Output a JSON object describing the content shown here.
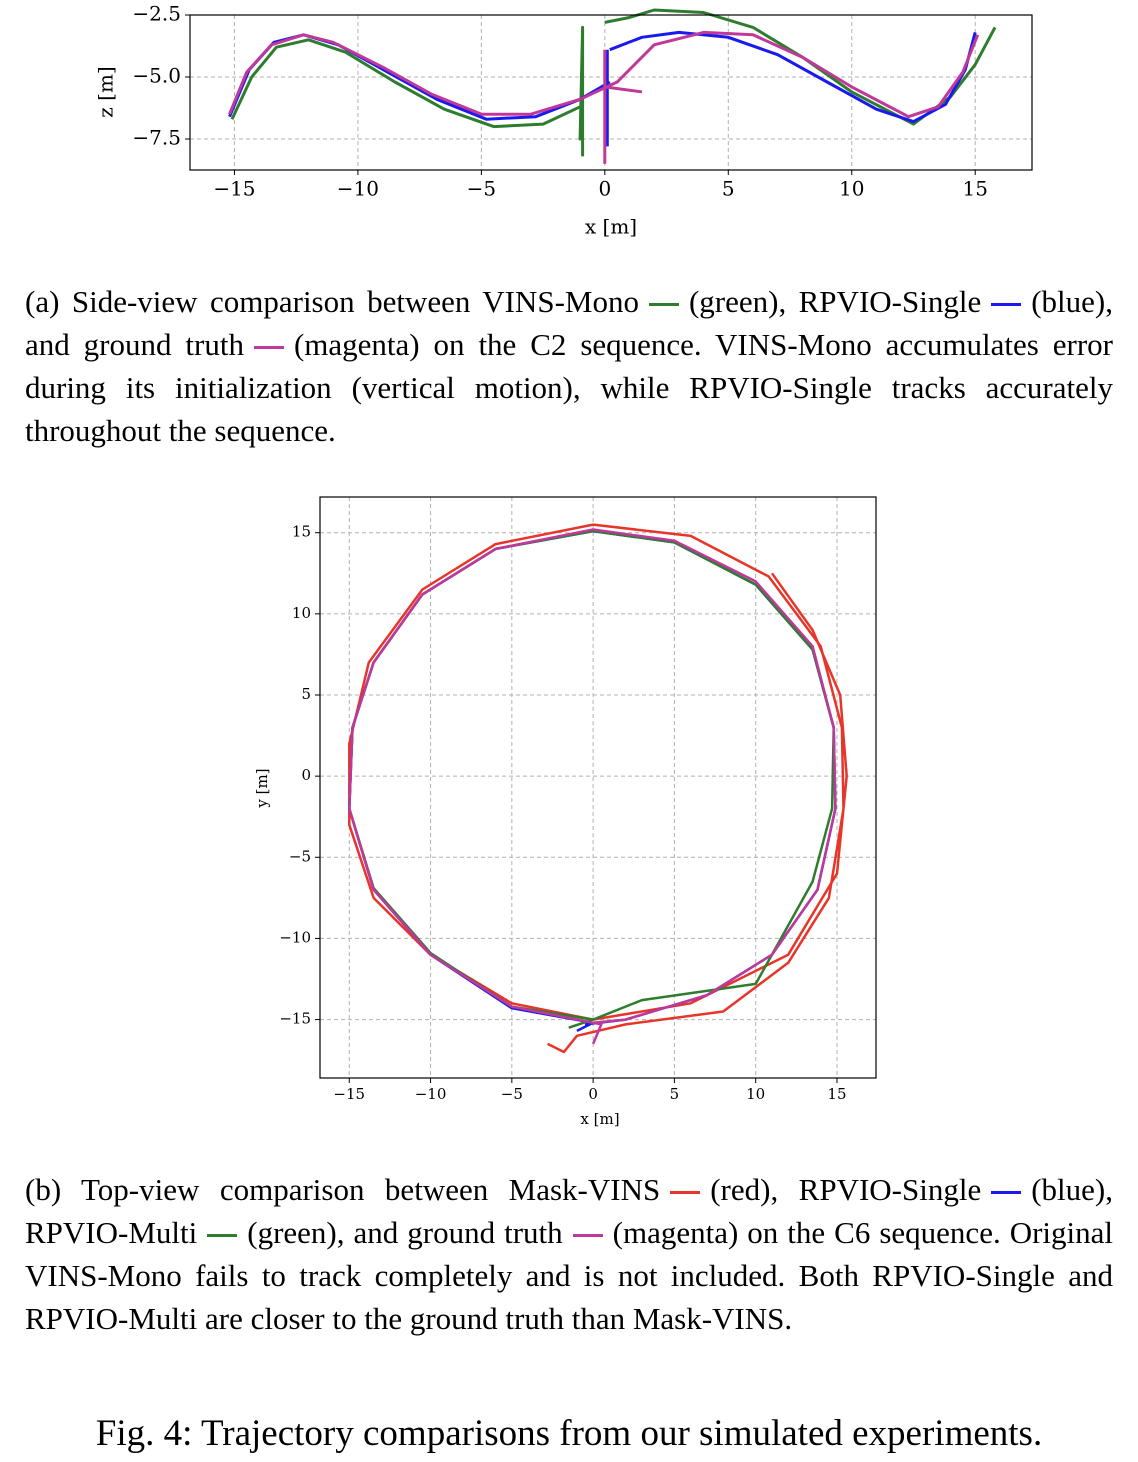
{
  "chart_data": [
    {
      "type": "line",
      "xlabel": "x [m]",
      "ylabel": "z [m]",
      "xlim": [
        -16.8,
        17.3
      ],
      "ylim": [
        -8.75,
        -2.5
      ],
      "xticks": [
        {
          "value": -15,
          "label": "−15"
        },
        {
          "value": -10,
          "label": "−10"
        },
        {
          "value": -5,
          "label": "−5"
        },
        0,
        5,
        10,
        15
      ],
      "yticks": [
        {
          "value": -7.5,
          "label": "−7.5"
        },
        {
          "value": -5.0,
          "label": "−5.0"
        },
        {
          "value": -2.5,
          "label": "−2.5"
        }
      ],
      "grid": true,
      "series": [
        {
          "color": "#2e7d2e",
          "x": [
            -15.1,
            -14.3,
            -13.3,
            -12,
            -10.5,
            -8.5,
            -6.5,
            -4.5,
            -2.5,
            -1,
            null,
            -0.9,
            -0.9,
            -1,
            -0.9,
            null,
            0,
            1,
            2,
            4,
            6,
            8,
            10,
            12.5,
            14,
            15,
            15.8
          ],
          "values": [
            -6.7,
            -5,
            -3.8,
            -3.5,
            -4,
            -5.2,
            -6.3,
            -7,
            -6.9,
            -6.2,
            null,
            -8.2,
            -3,
            -7.5,
            -4,
            null,
            -2.8,
            -2.6,
            -2.3,
            -2.4,
            -3,
            -4.2,
            -5.6,
            -6.9,
            -5.8,
            -4.5,
            -3
          ]
        },
        {
          "color": "#1a1aee",
          "x": [
            -15.2,
            -14.4,
            -13.4,
            -12.2,
            -10.8,
            -8.8,
            -6.8,
            -4.8,
            -2.8,
            -1,
            0.2,
            null,
            0.1,
            0.1,
            null,
            0.2,
            1.5,
            3,
            5,
            7,
            9,
            11,
            12.5,
            13.8,
            14.6,
            15
          ],
          "values": [
            -6.6,
            -4.7,
            -3.6,
            -3.3,
            -3.7,
            -4.8,
            -5.9,
            -6.7,
            -6.6,
            -5.9,
            -5.2,
            null,
            -3.9,
            -7.8,
            null,
            -3.9,
            -3.4,
            -3.2,
            -3.4,
            -4.1,
            -5.2,
            -6.3,
            -6.8,
            -6.1,
            -4.7,
            -3.2
          ]
        },
        {
          "color": "#c0389a",
          "x": [
            -15.2,
            -14.5,
            -13.5,
            -12.2,
            -11,
            -9,
            -7,
            -5,
            -3,
            -1,
            0.5,
            2,
            4,
            6,
            8,
            10,
            12.3,
            13.5,
            14.5,
            15.1,
            null,
            0,
            0,
            null,
            0,
            1.5
          ],
          "values": [
            -6.5,
            -4.8,
            -3.7,
            -3.3,
            -3.6,
            -4.6,
            -5.7,
            -6.5,
            -6.5,
            -5.9,
            -5.2,
            -3.7,
            -3.2,
            -3.3,
            -4.2,
            -5.4,
            -6.6,
            -6.2,
            -4.8,
            -3.3,
            null,
            -3.9,
            -8.5,
            null,
            -5.4,
            -5.6
          ]
        }
      ]
    },
    {
      "type": "line",
      "xlabel": "x [m]",
      "ylabel": "y [m]",
      "xlim": [
        -16.8,
        17.4
      ],
      "ylim": [
        -18.6,
        17.2
      ],
      "xticks": [
        {
          "value": -15,
          "label": "−15"
        },
        {
          "value": -10,
          "label": "−10"
        },
        {
          "value": -5,
          "label": "−5"
        },
        0,
        5,
        10,
        15
      ],
      "yticks": [
        {
          "value": -15,
          "label": "−15"
        },
        {
          "value": -10,
          "label": "−10"
        },
        {
          "value": -5,
          "label": "−5"
        },
        0,
        5,
        10,
        15
      ],
      "grid": true,
      "series": [
        {
          "color": "#e8352a",
          "x": [
            -2.8,
            -1.8,
            -1,
            2,
            8,
            12,
            14.5,
            15.4,
            15.3,
            14,
            10.8,
            6,
            0,
            -6,
            -10.5,
            -13.8,
            -15,
            -15,
            -13.5,
            -10,
            -5,
            0,
            6,
            12,
            15,
            15.6,
            15.2,
            13.5,
            11
          ],
          "values": [
            -16.5,
            -17,
            -16,
            -15.3,
            -14.5,
            -11.5,
            -7.5,
            -2,
            3,
            8,
            12.3,
            14.8,
            15.5,
            14.3,
            11.5,
            7,
            2,
            -3,
            -7.5,
            -11,
            -14,
            -15,
            -14,
            -11,
            -6,
            0,
            5,
            9,
            12.5
          ]
        },
        {
          "color": "#1a1aee",
          "x": [
            -1,
            0,
            -5,
            -10,
            -13.5,
            -15,
            -14.8,
            -13.5,
            -10.5,
            -6,
            0,
            5,
            10,
            13.5,
            14.8,
            14.9,
            13.8,
            11,
            7,
            2,
            -0.5
          ],
          "values": [
            -15.7,
            -15.2,
            -14.3,
            -11,
            -7,
            -2,
            3,
            7,
            11.2,
            14,
            15.1,
            14.4,
            11.8,
            7.8,
            3,
            -2,
            -7,
            -11,
            -13.5,
            -15,
            -15.3
          ]
        },
        {
          "color": "#2e7d2e",
          "x": [
            -1.5,
            0,
            -5,
            -10,
            -13.5,
            -15,
            -14.8,
            -13.5,
            -10.5,
            -6,
            0,
            5,
            10,
            13.5,
            14.8,
            14.7,
            13.5,
            10,
            3,
            0
          ],
          "values": [
            -15.5,
            -15,
            -14.2,
            -10.9,
            -6.9,
            -2,
            3,
            7,
            11.2,
            14,
            15.1,
            14.4,
            11.8,
            7.8,
            3,
            -2,
            -6.5,
            -12.8,
            -13.8,
            -15
          ]
        },
        {
          "color": "#c0389a",
          "x": [
            0,
            0.5,
            -5,
            -10,
            -13.5,
            -15,
            -14.8,
            -13.5,
            -10.5,
            -6,
            0,
            5,
            10,
            13.5,
            14.8,
            14.9,
            13.8,
            11,
            7,
            2,
            0
          ],
          "values": [
            -16.5,
            -15.3,
            -14.2,
            -11,
            -7,
            -2,
            3,
            7,
            11.2,
            14,
            15.2,
            14.5,
            12,
            8,
            3,
            -2,
            -7,
            -11,
            -13.5,
            -15,
            -15.2
          ]
        }
      ]
    }
  ],
  "captions": {
    "a": [
      "(a) Side-view comparison between VINS-Mono",
      "(green), RPVIO-Single",
      "(blue), and ground truth",
      "(magenta) on the C2 sequence. VINS-Mono accumulates error during its initialization (vertical motion), while RPVIO-Single tracks accurately throughout the sequence."
    ],
    "b": [
      "(b) Top-view comparison between Mask-VINS",
      "(red), RPVIO-Single",
      "(blue), RPVIO-Multi",
      "(green), and ground truth",
      "(magenta) on the C6 sequence. Original VINS-Mono fails to track completely and is not included. Both RPVIO-Single and RPVIO-Multi are closer to the ground truth than Mask-VINS."
    ],
    "figure": "Fig. 4: Trajectory comparisons from our simulated experiments."
  }
}
